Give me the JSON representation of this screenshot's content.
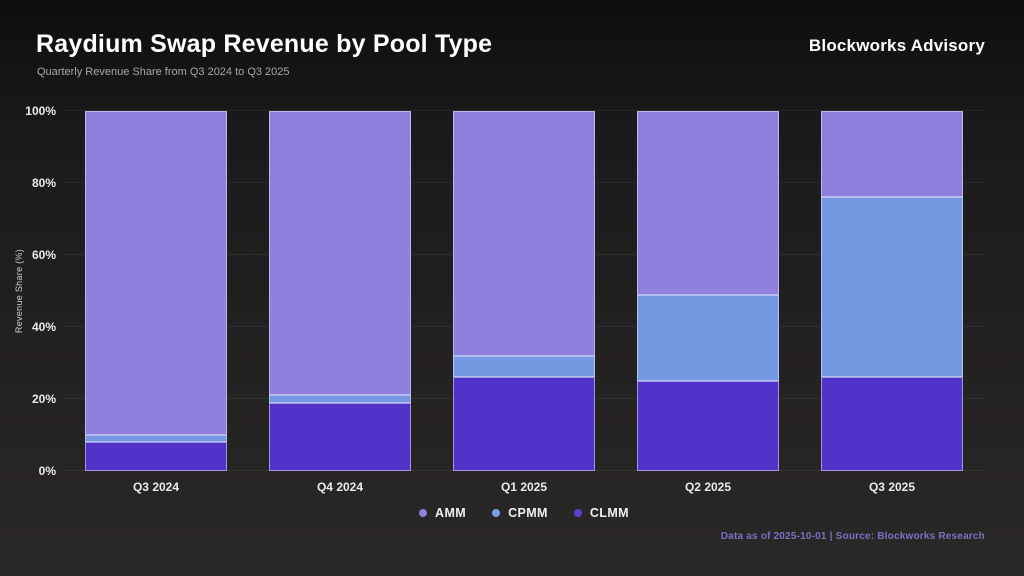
{
  "header": {
    "title": "Raydium Swap Revenue by Pool Type",
    "subtitle": "Quarterly Revenue Share from Q3 2024 to Q3 2025",
    "brand": "Blockworks Advisory"
  },
  "chart_data": {
    "type": "bar",
    "stacked": true,
    "title": "Raydium Swap Revenue by Pool Type",
    "subtitle": "Quarterly Revenue Share from Q3 2024 to Q3 2025",
    "xlabel": "",
    "ylabel": "Revenue Share (%)",
    "ylim": [
      0,
      100
    ],
    "grid": true,
    "legend_position": "bottom",
    "categories": [
      "Q3 2024",
      "Q4 2024",
      "Q1 2025",
      "Q2 2025",
      "Q3 2025"
    ],
    "series": [
      {
        "name": "CLMM",
        "color": "#5233c9",
        "values": [
          8,
          19,
          26,
          25,
          26
        ]
      },
      {
        "name": "CPMM",
        "color": "#7598e2",
        "values": [
          2,
          2,
          6,
          24,
          50
        ]
      },
      {
        "name": "AMM",
        "color": "#8f80dd",
        "values": [
          90,
          79,
          68,
          51,
          24
        ]
      }
    ],
    "yticks": [
      "0%",
      "20%",
      "40%",
      "60%",
      "80%",
      "100%"
    ],
    "legend_order": [
      "AMM",
      "CPMM",
      "CLMM"
    ],
    "legend_colors": {
      "AMM": "#8f80dd",
      "CPMM": "#7b9de4",
      "CLMM": "#5d3fd6"
    }
  },
  "footer": {
    "note": "Data as of 2025-10-01 | Source: Blockworks Research"
  }
}
